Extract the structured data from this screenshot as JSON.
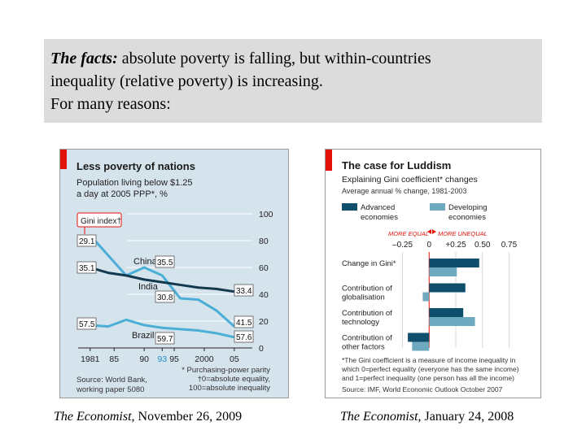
{
  "header": {
    "lead": "The facts:",
    "line1_rest": "absolute poverty is falling, but within-countries",
    "line2": "inequality (relative poverty) is increasing.",
    "line3": "For many reasons:"
  },
  "captions": [
    {
      "source": "The Economist",
      "date": ", November 26, 2009"
    },
    {
      "source": "The Economist",
      "date": ", January 24, 2008"
    }
  ],
  "colors": {
    "accent_red": "#e3120b",
    "dark_series": "#13394f",
    "light_series": "#4aaed6",
    "advanced": "#0f4f6b",
    "developing": "#6fa9c0"
  },
  "chart_data": [
    {
      "type": "line",
      "title": "Less poverty of nations",
      "subtitle_line1": "Population living below $1.25",
      "subtitle_line2": "a day at 2005 PPP*, %",
      "gini_label": "Gini index†",
      "x_ticks": [
        "1981",
        "85",
        "90",
        "93",
        "95",
        "2000",
        "05"
      ],
      "x_tick_values": [
        1981,
        1985,
        1990,
        1993,
        1995,
        2000,
        2005
      ],
      "highlight_tick": "93",
      "y_ticks": [
        "100",
        "80",
        "60",
        "40",
        "20",
        "0"
      ],
      "y_tick_values": [
        100,
        80,
        60,
        40,
        20,
        0
      ],
      "xlim": [
        1979,
        2008
      ],
      "ylim": [
        0,
        100
      ],
      "series": [
        {
          "name": "China",
          "color": "#4aaed6",
          "x": [
            1981,
            1984,
            1987,
            1990,
            1993,
            1996,
            1999,
            2002,
            2005
          ],
          "y": [
            84,
            69,
            54,
            60,
            54,
            37,
            36,
            28,
            16
          ]
        },
        {
          "name": "India",
          "color": "#13394f",
          "x": [
            1981,
            1984,
            1987,
            1990,
            1993,
            1996,
            1999,
            2002,
            2005
          ],
          "y": [
            60,
            56,
            54,
            51,
            49,
            47,
            45,
            44,
            42
          ]
        },
        {
          "name": "Brazil",
          "color": "#4aaed6",
          "x": [
            1981,
            1984,
            1987,
            1990,
            1993,
            1996,
            1999,
            2002,
            2005
          ],
          "y": [
            17,
            16,
            21,
            17,
            15,
            14,
            13,
            11,
            8
          ]
        }
      ],
      "value_boxes": [
        "29.1",
        "35.1",
        "35.5",
        "30.8",
        "33.4",
        "57.5",
        "59.7",
        "41.5",
        "57.6"
      ],
      "source_line1": "Source: World Bank,",
      "source_line2": "working paper 5080",
      "footnote_line1": "* Purchasing-power parity",
      "footnote_line2": "†0=absolute equality,",
      "footnote_line3": "100=absolute inequality"
    },
    {
      "type": "bar",
      "orientation": "horizontal",
      "title": "The case for Luddism",
      "subtitle": "Explaining Gini coefficient* changes",
      "subtitle2": "Average annual % change, 1981-2003",
      "legend": [
        "Advanced economies",
        "Developing economies"
      ],
      "legend_lines": [
        [
          "Advanced",
          "economies"
        ],
        [
          "Developing",
          "economies"
        ]
      ],
      "direction_left": "MORE EQUAL",
      "direction_right": "MORE UNEQUAL",
      "x_ticks": [
        "0.25",
        "0",
        "0.25",
        "0.50",
        "0.75"
      ],
      "x_tick_signs": [
        "–",
        "",
        "+",
        "",
        ""
      ],
      "x_tick_values": [
        -0.25,
        0,
        0.25,
        0.5,
        0.75
      ],
      "xlim": [
        -0.3,
        0.8
      ],
      "categories": [
        "Change in Gini*",
        "Contribution of globalisation",
        "Contribution of technology",
        "Contribution of other factors"
      ],
      "category_lines": [
        [
          "Change in Gini*"
        ],
        [
          "Contribution of",
          "globalisation"
        ],
        [
          "Contribution of",
          "technology"
        ],
        [
          "Contribution of",
          "other factors"
        ]
      ],
      "series": [
        {
          "name": "Advanced economies",
          "values": [
            0.47,
            0.34,
            0.32,
            -0.2
          ]
        },
        {
          "name": "Developing economies",
          "values": [
            0.26,
            -0.06,
            0.43,
            -0.16
          ]
        }
      ],
      "footnote_line1": "*The Gini coefficient is a measure of income inequality in",
      "footnote_line2": "which 0=perfect equality (everyone has the same income)",
      "footnote_line3": "and 1=perfect inequality (one person has all the income)",
      "source": "Source: IMF, World Economic Outlook October 2007"
    }
  ]
}
